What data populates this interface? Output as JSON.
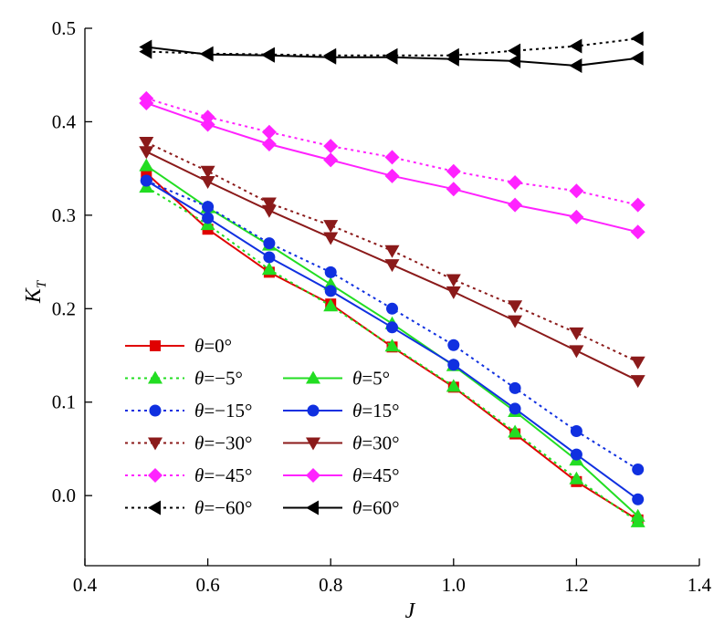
{
  "chart_data": {
    "type": "line",
    "title": "",
    "xlabel": "J",
    "ylabel": "K",
    "ylabel_subscript": "T",
    "xlim": [
      0.4,
      1.4
    ],
    "ylim": [
      -0.075,
      0.5
    ],
    "xticks": [
      0.4,
      0.6,
      0.8,
      1.0,
      1.2,
      1.4
    ],
    "xtick_labels": [
      "0.4",
      "0.6",
      "0.8",
      "1.0",
      "1.2",
      "1.4"
    ],
    "yticks": [
      0.0,
      0.1,
      0.2,
      0.3,
      0.4,
      0.5
    ],
    "ytick_labels": [
      "0.0",
      "0.1",
      "0.2",
      "0.3",
      "0.4",
      "0.5"
    ],
    "grid": false,
    "legend_position": "lower-left",
    "x": [
      0.5,
      0.6,
      0.7,
      0.8,
      0.9,
      1.0,
      1.1,
      1.2,
      1.3
    ],
    "series": [
      {
        "name": "θ=0°",
        "theta": "θ",
        "value": "=0°",
        "color": "#e00000",
        "marker": "square",
        "dash": "solid",
        "values": [
          0.345,
          0.285,
          0.239,
          0.205,
          0.159,
          0.116,
          0.066,
          0.015,
          -0.026
        ]
      },
      {
        "name": "θ=−5°",
        "theta": "θ",
        "value": "=−5°",
        "color": "#22dd22",
        "marker": "triangle-up",
        "dash": "dotted",
        "values": [
          0.33,
          0.29,
          0.242,
          0.203,
          0.16,
          0.117,
          0.068,
          0.018,
          -0.028
        ]
      },
      {
        "name": "θ=5°",
        "theta": "θ",
        "value": "=5°",
        "color": "#22dd22",
        "marker": "triangle-up",
        "dash": "solid",
        "values": [
          0.353,
          0.308,
          0.268,
          0.226,
          0.184,
          0.139,
          0.09,
          0.038,
          -0.022
        ]
      },
      {
        "name": "θ=−15°",
        "theta": "θ",
        "value": "=−15°",
        "color": "#1030e0",
        "marker": "circle",
        "dash": "dotted",
        "values": [
          0.337,
          0.309,
          0.27,
          0.239,
          0.2,
          0.161,
          0.115,
          0.069,
          0.028
        ]
      },
      {
        "name": "θ=15°",
        "theta": "θ",
        "value": "=15°",
        "color": "#1030e0",
        "marker": "circle",
        "dash": "solid",
        "values": [
          0.337,
          0.297,
          0.255,
          0.219,
          0.18,
          0.14,
          0.093,
          0.044,
          -0.004
        ]
      },
      {
        "name": "θ=−30°",
        "theta": "θ",
        "value": "=−30°",
        "color": "#8b1a1a",
        "marker": "triangle-down",
        "dash": "dotted",
        "values": [
          0.378,
          0.347,
          0.313,
          0.289,
          0.262,
          0.231,
          0.203,
          0.174,
          0.143
        ]
      },
      {
        "name": "θ=30°",
        "theta": "θ",
        "value": "=30°",
        "color": "#8b1a1a",
        "marker": "triangle-down",
        "dash": "solid",
        "values": [
          0.368,
          0.336,
          0.305,
          0.276,
          0.247,
          0.218,
          0.187,
          0.155,
          0.123
        ]
      },
      {
        "name": "θ=−45°",
        "theta": "θ",
        "value": "=−45°",
        "color": "#ff22ff",
        "marker": "diamond",
        "dash": "dotted",
        "values": [
          0.425,
          0.405,
          0.389,
          0.374,
          0.362,
          0.347,
          0.335,
          0.326,
          0.311
        ]
      },
      {
        "name": "θ=45°",
        "theta": "θ",
        "value": "=45°",
        "color": "#ff22ff",
        "marker": "diamond",
        "dash": "solid",
        "values": [
          0.42,
          0.397,
          0.376,
          0.359,
          0.342,
          0.328,
          0.311,
          0.298,
          0.282
        ]
      },
      {
        "name": "θ=−60°",
        "theta": "θ",
        "value": "=−60°",
        "color": "#000000",
        "marker": "triangle-left",
        "dash": "dotted",
        "values": [
          0.475,
          0.473,
          0.472,
          0.471,
          0.471,
          0.471,
          0.476,
          0.481,
          0.489
        ]
      },
      {
        "name": "θ=60°",
        "theta": "θ",
        "value": "=60°",
        "color": "#000000",
        "marker": "triangle-left",
        "dash": "solid",
        "values": [
          0.48,
          0.472,
          0.471,
          0.469,
          0.469,
          0.467,
          0.465,
          0.46,
          0.468
        ]
      }
    ],
    "legend_order": [
      "θ=0°",
      "θ=−5°",
      "θ=5°",
      "θ=−15°",
      "θ=15°",
      "θ=−30°",
      "θ=30°",
      "θ=−45°",
      "θ=45°",
      "θ=−60°",
      "θ=60°"
    ]
  }
}
